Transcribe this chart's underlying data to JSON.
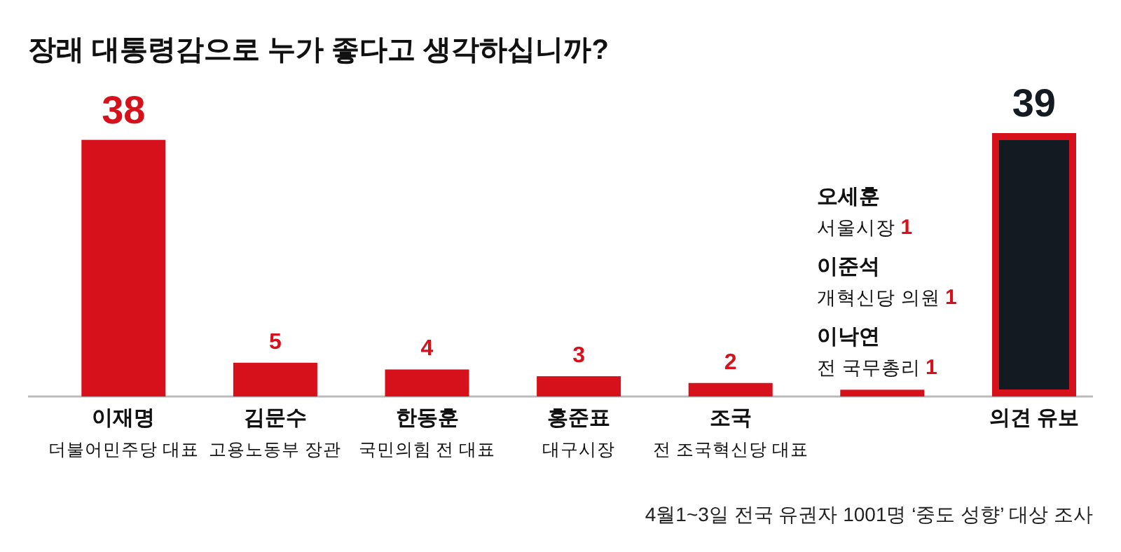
{
  "chart_data": {
    "type": "bar",
    "title": "장래 대통령감으로 누가 좋다고 생각하십니까?",
    "categories": [
      "이재명\n더불어민주당 대표",
      "김문수\n고용노동부 장관",
      "한동훈\n국민의힘 전 대표",
      "홍준표\n대구시장",
      "조국\n전 조국혁신당 대표",
      null,
      "의견 유보"
    ],
    "values": [
      38,
      5,
      4,
      3,
      2,
      1,
      39
    ],
    "colors": [
      "#d7111b",
      "#d7111b",
      "#d7111b",
      "#d7111b",
      "#d7111b",
      "#d7111b",
      "#141a22"
    ],
    "value_labels": [
      "38",
      "5",
      "4",
      "3",
      "2",
      null,
      "39"
    ],
    "annotations": [
      "오세훈\n서울시장 1",
      "이준석\n개혁신당 의원 1",
      "이낙연\n전 국무총리 1",
      "4월1~3일 전국 유권자 1001명 ‘중도 성향’ 대상 조사"
    ]
  }
}
